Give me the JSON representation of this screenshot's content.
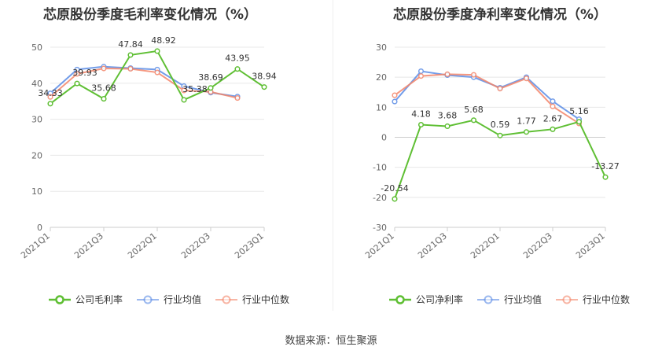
{
  "chart_data": [
    {
      "type": "line",
      "title": "芯原股份季度毛利率变化情况（%）",
      "categories": [
        "2021Q1",
        "2021Q2",
        "2021Q3",
        "2021Q4",
        "2022Q1",
        "2022Q2",
        "2022Q3",
        "2022Q4",
        "2023Q1"
      ],
      "x_tick_labels": [
        "2021Q1",
        "2021Q3",
        "2022Q1",
        "2022Q3",
        "2023Q1"
      ],
      "ylim": [
        0,
        50
      ],
      "y_ticks": [
        0,
        10,
        20,
        30,
        40,
        50
      ],
      "grid": true,
      "legend_position": "bottom",
      "series": [
        {
          "name": "公司毛利率",
          "color": "#5fbf34",
          "values": [
            34.33,
            39.93,
            35.68,
            47.84,
            48.92,
            35.38,
            38.69,
            43.95,
            38.94
          ],
          "labels": [
            "34.33",
            "39.93",
            "35.68",
            "47.84",
            "48.92",
            "35.38",
            "38.69",
            "43.95",
            "38.94"
          ]
        },
        {
          "name": "行业均值",
          "color": "#5b8ce6",
          "values": [
            37.2,
            43.8,
            44.6,
            44.2,
            43.8,
            39.2,
            37.4,
            36.3,
            null
          ]
        },
        {
          "name": "行业中位数",
          "color": "#f4866a",
          "values": [
            36.2,
            42.6,
            44.1,
            44.0,
            43.0,
            38.0,
            37.6,
            35.9,
            null
          ]
        }
      ]
    },
    {
      "type": "line",
      "title": "芯原股份季度净利率变化情况（%）",
      "categories": [
        "2021Q1",
        "2021Q2",
        "2021Q3",
        "2021Q4",
        "2022Q1",
        "2022Q2",
        "2022Q3",
        "2022Q4",
        "2023Q1"
      ],
      "x_tick_labels": [
        "2021Q1",
        "2021Q3",
        "2022Q1",
        "2022Q3",
        "2023Q1"
      ],
      "ylim": [
        -30,
        30
      ],
      "y_ticks": [
        -30,
        -20,
        -10,
        0,
        10,
        20,
        30
      ],
      "grid": true,
      "legend_position": "bottom",
      "series": [
        {
          "name": "公司净利率",
          "color": "#5fbf34",
          "values": [
            -20.54,
            4.18,
            3.68,
            5.68,
            0.59,
            1.77,
            2.67,
            5.16,
            -13.27
          ],
          "labels": [
            "-20.54",
            "4.18",
            "3.68",
            "5.68",
            "0.59",
            "1.77",
            "2.67",
            "5.16",
            "-13.27"
          ]
        },
        {
          "name": "行业均值",
          "color": "#5b8ce6",
          "values": [
            11.9,
            22.0,
            20.7,
            20.0,
            16.5,
            20.0,
            12.0,
            6.0,
            null
          ]
        },
        {
          "name": "行业中位数",
          "color": "#f4866a",
          "values": [
            14.0,
            20.4,
            21.0,
            20.8,
            16.2,
            19.6,
            10.3,
            4.6,
            null
          ]
        }
      ]
    }
  ],
  "source": "数据来源：恒生聚源"
}
